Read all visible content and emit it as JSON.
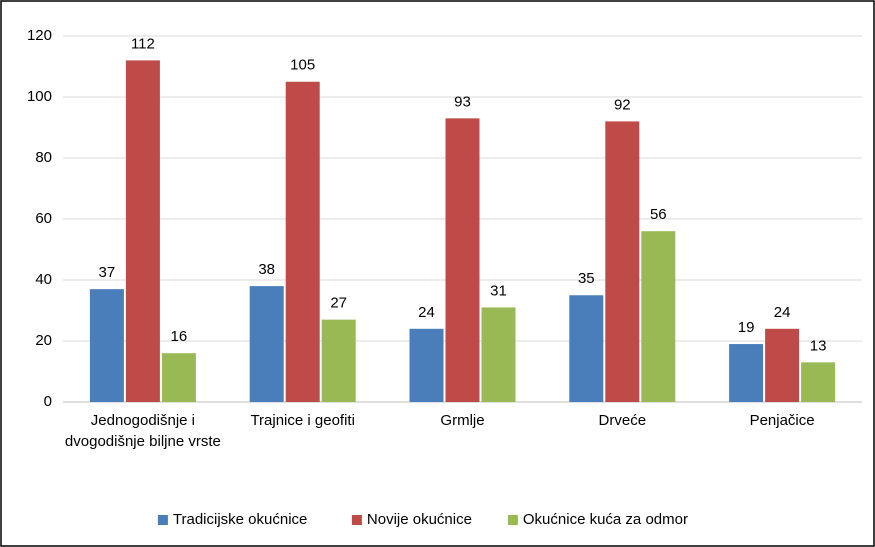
{
  "chart_data": {
    "type": "bar",
    "categories": [
      "Jednogodišnje i dvogodišnje biljne vrste",
      "Trajnice i geofiti",
      "Grmlje",
      "Drveće",
      "Penjačice"
    ],
    "series": [
      {
        "name": "Tradicijske okućnice",
        "color": "#4a7ebb",
        "values": [
          37,
          38,
          24,
          35,
          19
        ]
      },
      {
        "name": "Novije okućnice",
        "color": "#be4b48",
        "values": [
          112,
          105,
          93,
          92,
          24
        ]
      },
      {
        "name": "Okućnice kuća za odmor",
        "color": "#98b954",
        "values": [
          16,
          27,
          31,
          56,
          13
        ]
      }
    ],
    "ylim": [
      0,
      120
    ],
    "yticks": [
      0,
      20,
      40,
      60,
      80,
      100,
      120
    ],
    "grid": true,
    "legend": "bottom"
  }
}
